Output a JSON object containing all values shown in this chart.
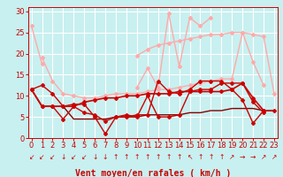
{
  "bg_color": "#c8f0f0",
  "grid_color": "#ffffff",
  "xlabel": "Vent moyen/en rafales ( km/h )",
  "xlabel_color": "#cc0000",
  "xlabel_fontsize": 7,
  "yticks": [
    0,
    5,
    10,
    15,
    20,
    25,
    30
  ],
  "xticks": [
    0,
    1,
    2,
    3,
    4,
    5,
    6,
    7,
    8,
    9,
    10,
    11,
    12,
    13,
    14,
    15,
    16,
    17,
    18,
    19,
    20,
    21,
    22,
    23
  ],
  "tick_color": "#cc0000",
  "tick_fontsize": 6,
  "ylim": [
    0,
    31
  ],
  "xlim": [
    -0.3,
    23.3
  ],
  "lines": [
    {
      "y": [
        26.5,
        17.5,
        null,
        null,
        null,
        null,
        null,
        null,
        null,
        null,
        null,
        null,
        null,
        null,
        null,
        null,
        null,
        null,
        null,
        null,
        null,
        null,
        null,
        null
      ],
      "color": "#ffaaaa",
      "lw": 1.0,
      "marker": "D",
      "ms": 2.0
    },
    {
      "y": [
        null,
        null,
        null,
        null,
        null,
        null,
        null,
        null,
        null,
        null,
        19.5,
        21.0,
        22.0,
        22.5,
        23.0,
        23.5,
        24.0,
        24.5,
        24.5,
        25.0,
        25.0,
        18.0,
        12.5,
        null
      ],
      "color": "#ffaaaa",
      "lw": 1.0,
      "marker": "D",
      "ms": 2.0
    },
    {
      "y": [
        null,
        null,
        null,
        null,
        null,
        null,
        null,
        null,
        null,
        null,
        12.0,
        16.5,
        12.0,
        29.5,
        17.0,
        28.5,
        26.5,
        28.5,
        null,
        null,
        null,
        null,
        null,
        null
      ],
      "color": "#ffaaaa",
      "lw": 1.0,
      "marker": "D",
      "ms": 2.0
    },
    {
      "y": [
        null,
        19.0,
        13.5,
        10.5,
        10.0,
        9.5,
        9.5,
        10.0,
        10.5,
        10.5,
        10.5,
        11.0,
        11.5,
        11.5,
        12.0,
        12.5,
        13.0,
        13.5,
        14.0,
        14.0,
        25.0,
        24.5,
        24.0,
        10.5
      ],
      "color": "#ffaaaa",
      "lw": 1.0,
      "marker": "D",
      "ms": 2.0
    },
    {
      "y": [
        11.5,
        12.5,
        10.5,
        7.5,
        8.0,
        8.0,
        5.0,
        1.0,
        5.0,
        5.0,
        5.5,
        5.5,
        13.5,
        11.0,
        10.5,
        11.5,
        13.5,
        13.5,
        13.5,
        11.5,
        9.0,
        3.5,
        6.5,
        null
      ],
      "color": "#cc0000",
      "lw": 1.0,
      "marker": "D",
      "ms": 2.0
    },
    {
      "y": [
        11.5,
        7.5,
        7.5,
        4.5,
        7.5,
        6.0,
        5.5,
        4.0,
        5.0,
        5.5,
        5.0,
        10.0,
        5.0,
        5.0,
        5.5,
        11.0,
        11.5,
        11.5,
        13.0,
        13.0,
        13.0,
        8.5,
        6.0,
        null
      ],
      "color": "#cc0000",
      "lw": 1.0,
      "marker": "D",
      "ms": 2.0
    },
    {
      "y": [
        11.5,
        7.5,
        7.5,
        7.5,
        7.5,
        8.5,
        9.0,
        9.5,
        9.5,
        10.0,
        10.0,
        10.5,
        10.5,
        10.5,
        11.0,
        11.0,
        11.0,
        11.0,
        11.0,
        11.5,
        13.0,
        9.5,
        6.5,
        6.5
      ],
      "color": "#cc0000",
      "lw": 1.2,
      "marker": "D",
      "ms": 2.0
    },
    {
      "y": [
        11.5,
        7.5,
        7.5,
        7.5,
        4.5,
        4.5,
        4.5,
        4.5,
        5.0,
        5.0,
        5.0,
        5.5,
        5.5,
        5.5,
        5.5,
        6.0,
        6.0,
        6.5,
        6.5,
        7.0,
        7.0,
        7.0,
        6.5,
        6.5
      ],
      "color": "#880000",
      "lw": 1.0,
      "marker": null,
      "ms": 0
    }
  ],
  "arrows": [
    "↙",
    "↙",
    "↙",
    "↓",
    "↙",
    "↙",
    "↓",
    "↓",
    "↑",
    "↑",
    "↑",
    "↑",
    "↑",
    "↑",
    "↑",
    "↖",
    "↑",
    "↑",
    "↑",
    "↗",
    "→",
    "→",
    "↗",
    "↗"
  ]
}
